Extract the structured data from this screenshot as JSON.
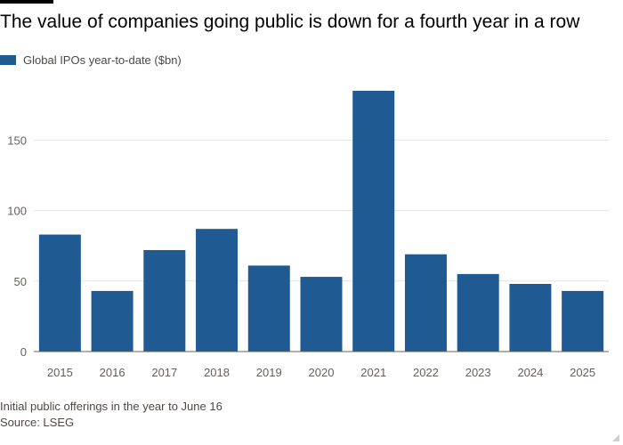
{
  "header": {
    "title": "The value of companies going public is down for a fourth year in a row"
  },
  "colors": {
    "bar": "#1f5a93",
    "grid": "#e6e3df",
    "axis_text": "#66605c",
    "baseline": "#66605c"
  },
  "footer": {
    "note": "Initial public offerings in the year to June 16",
    "source": "Source: LSEG"
  },
  "chart_data": {
    "type": "bar",
    "title": "The value of companies going public is down for a fourth year in a row",
    "xlabel": "",
    "ylabel": "",
    "categories": [
      "2015",
      "2016",
      "2017",
      "2018",
      "2019",
      "2020",
      "2021",
      "2022",
      "2023",
      "2024",
      "2025"
    ],
    "series": [
      {
        "name": "Global IPOs year-to-date ($bn)",
        "values": [
          83,
          43,
          72,
          87,
          61,
          53,
          185,
          69,
          55,
          48,
          43
        ]
      }
    ],
    "ylim": [
      0,
      185
    ],
    "yticks": [
      0,
      50,
      100,
      150
    ],
    "grid": true,
    "legend_position": "top-left"
  }
}
